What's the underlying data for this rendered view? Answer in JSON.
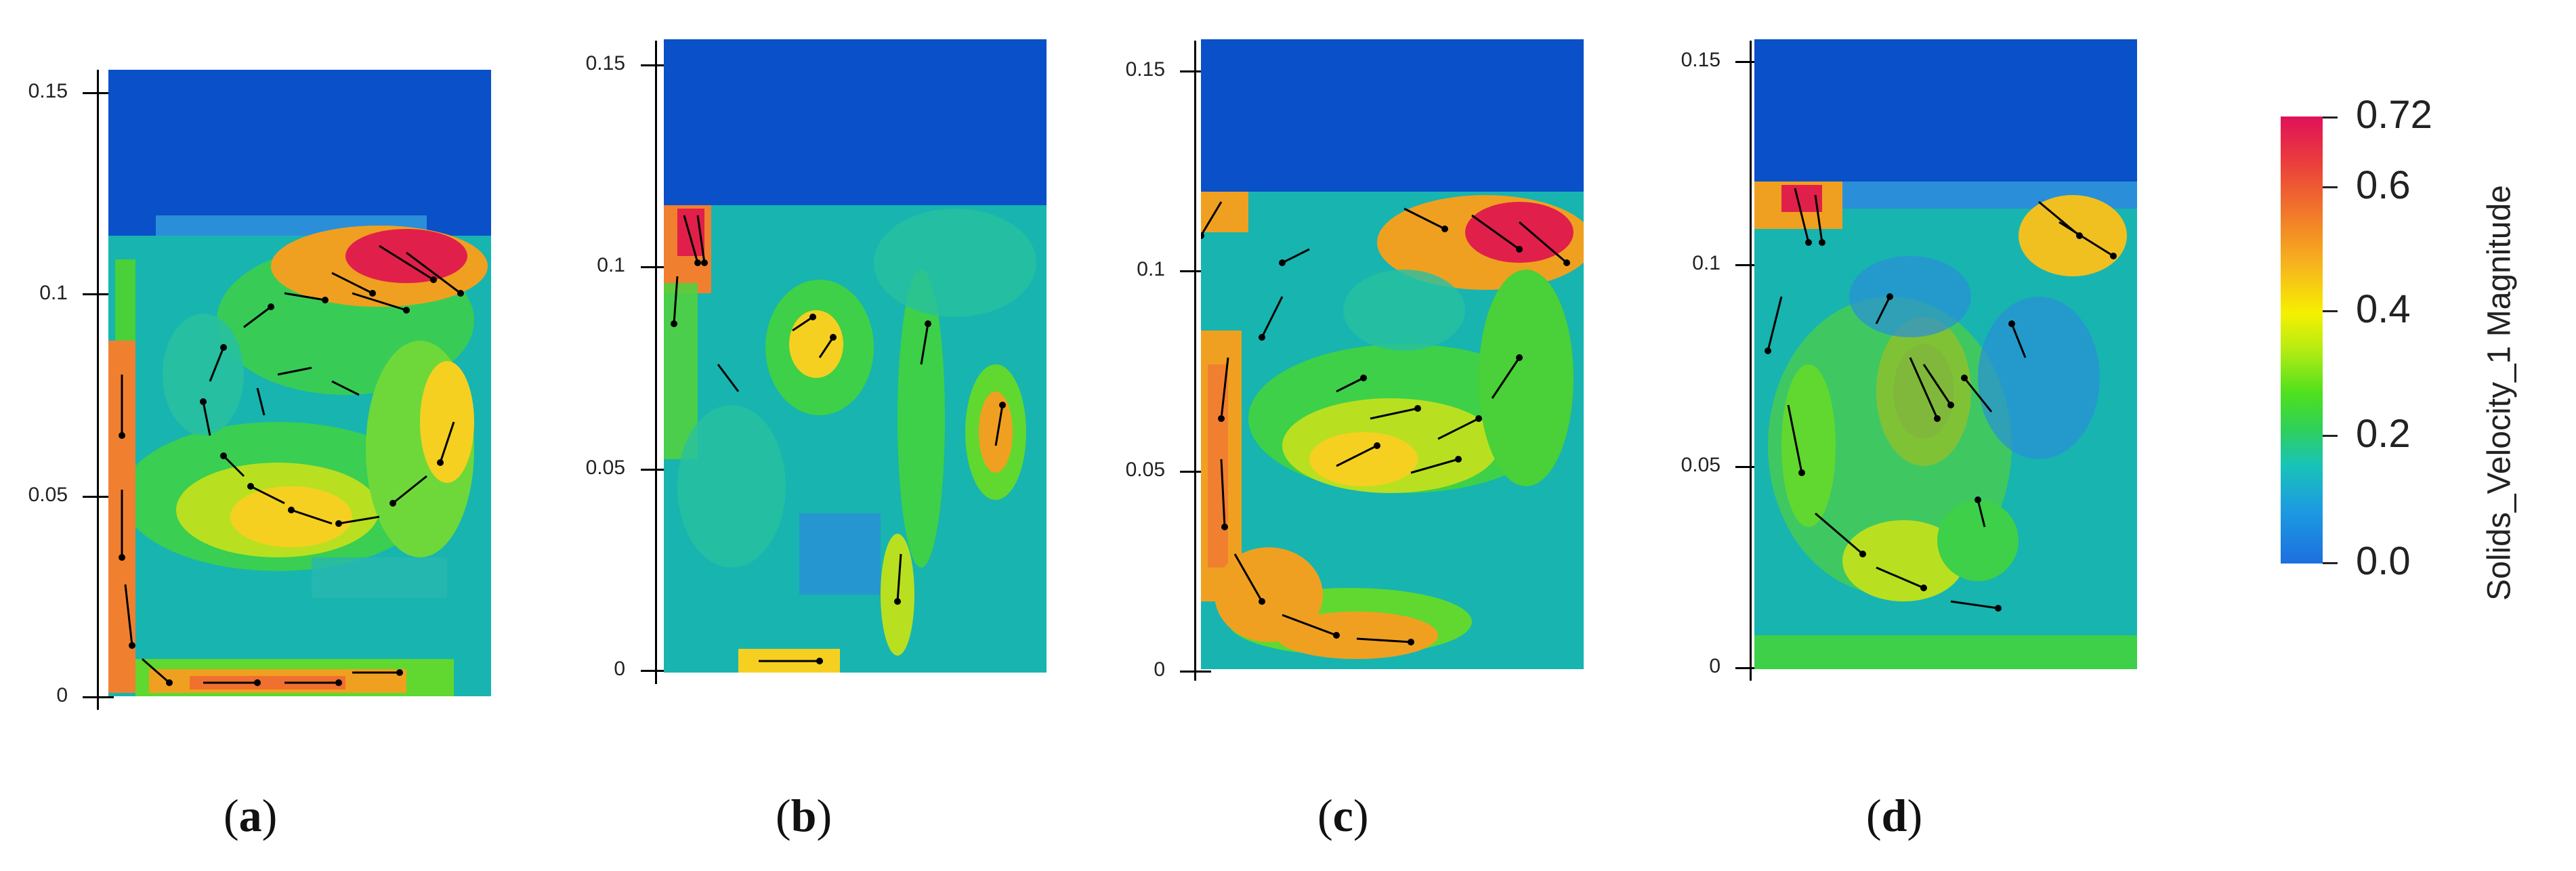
{
  "panels": [
    {
      "caption_open": "(",
      "caption_letter": "a",
      "caption_close": ")",
      "ticks": [
        "0.15",
        "0.1",
        "0.05",
        "0"
      ]
    },
    {
      "caption_open": "(",
      "caption_letter": "b",
      "caption_close": ")",
      "ticks": [
        "0.15",
        "0.1",
        "0.05",
        "0"
      ]
    },
    {
      "caption_open": "(",
      "caption_letter": "c",
      "caption_close": ")",
      "ticks": [
        "0.15",
        "0.1",
        "0.05",
        "0"
      ]
    },
    {
      "caption_open": "(",
      "caption_letter": "d",
      "caption_close": ")",
      "ticks": [
        "0.15",
        "0.1",
        "0.05",
        "0"
      ]
    }
  ],
  "legend": {
    "title": "Solids_Velocity_1 Magnitude",
    "labels": [
      "0.72",
      "0.6",
      "0.4",
      "0.2",
      "0.0"
    ],
    "colors": [
      "#1d6fe0",
      "#19c3b8",
      "#4ee01e",
      "#f5f000",
      "#f27a2a",
      "#e0115a"
    ]
  },
  "colors": {
    "freeboard": "#0a50c8",
    "bed_base": "#19b8b0"
  }
}
